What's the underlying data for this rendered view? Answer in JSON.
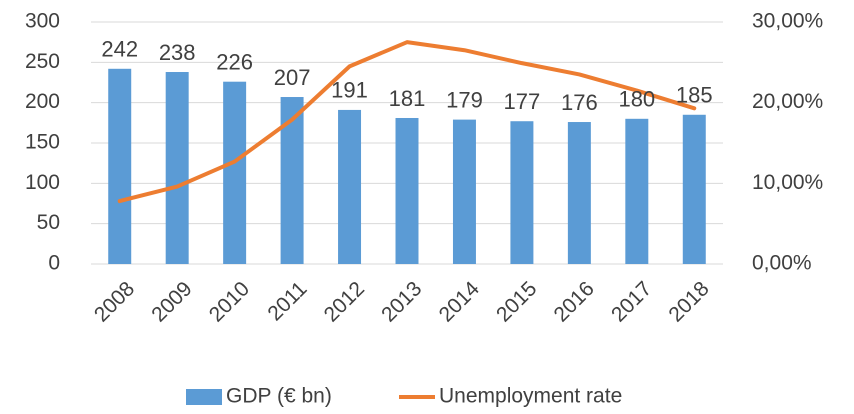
{
  "chart_data": {
    "type": "bar",
    "categories": [
      "2008",
      "2009",
      "2010",
      "2011",
      "2012",
      "2013",
      "2014",
      "2015",
      "2016",
      "2017",
      "2018"
    ],
    "series": [
      {
        "name": "GDP (€ bn)",
        "type": "bar",
        "color": "#5b9bd5",
        "values": [
          242,
          238,
          226,
          207,
          191,
          181,
          179,
          177,
          176,
          180,
          185
        ]
      },
      {
        "name": "Unemployment rate",
        "type": "line",
        "axis": "y2",
        "color": "#ed7d31",
        "values": [
          7.8,
          9.6,
          12.7,
          17.9,
          24.5,
          27.5,
          26.5,
          24.9,
          23.5,
          21.5,
          19.3
        ]
      }
    ],
    "ylim": [
      0,
      300
    ],
    "yticks": [
      0,
      50,
      100,
      150,
      200,
      250,
      300
    ],
    "y2lim": [
      0,
      30
    ],
    "y2ticks": [
      {
        "value": 0,
        "label": "0,00%"
      },
      {
        "value": 10,
        "label": "10,00%"
      },
      {
        "value": 20,
        "label": "20,00%"
      },
      {
        "value": 30,
        "label": "30,00%"
      }
    ],
    "grid": true,
    "legend": "bottom"
  }
}
